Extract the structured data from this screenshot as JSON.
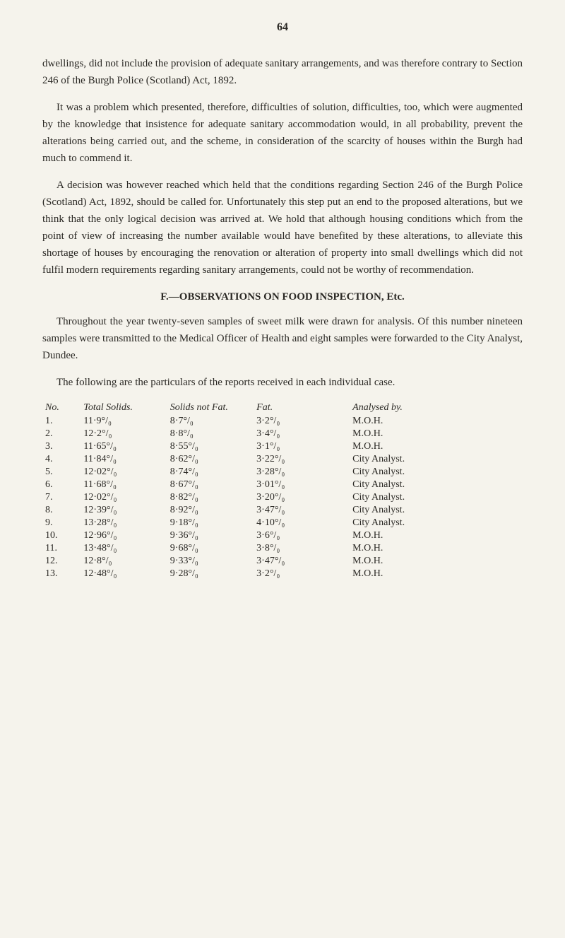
{
  "page_number": "64",
  "paragraphs": [
    "dwellings, did not include the provision of adequate sanitary arrangements, and was therefore contrary to Section 246 of the Burgh Police (Scotland) Act, 1892.",
    "It was a problem which presented, therefore, difficulties of solution, difficulties, too, which were augmented by the knowledge that insistence for adequate sanitary accommodation would, in all probability, prevent the alterations being carried out, and the scheme, in consideration of the scarcity of houses within the Burgh had much to commend it.",
    "A decision was however reached which held that the conditions regarding Section 246 of the Burgh Police (Scotland) Act, 1892, should be called for. Unfortunately this step put an end to the proposed alterations, but we think that the only logical decision was arrived at. We hold that although housing conditions which from the point of view of increasing the number available would have benefited by these alterations, to alleviate this shortage of houses by encouraging the renovation or alteration of property into small dwellings which did not fulfil modern requirements regarding sanitary arrangements, could not be worthy of recommendation."
  ],
  "section_heading": "F.—OBSERVATIONS ON FOOD INSPECTION, Etc.",
  "section_paragraphs": [
    "Throughout the year twenty-seven samples of sweet milk were drawn for analysis. Of this number nineteen samples were transmitted to the Medical Officer of Health and eight samples were forwarded to the City Analyst, Dundee.",
    "The following are the particulars of the reports received in each individual case."
  ],
  "table": {
    "headers": [
      "No.",
      "Total Solids.",
      "Solids not Fat.",
      "Fat.",
      "Analysed by."
    ],
    "rows": [
      [
        "1.",
        "11·9°/₀",
        "8·7°/₀",
        "3·2°/₀",
        "M.O.H."
      ],
      [
        "2.",
        "12·2°/₀",
        "8·8°/₀",
        "3·4°/₀",
        "M.O.H."
      ],
      [
        "3.",
        "11·65°/₀",
        "8·55°/₀",
        "3·1°/₀",
        "M.O.H."
      ],
      [
        "4.",
        "11·84°/₀",
        "8·62°/₀",
        "3·22°/₀",
        "City Analyst."
      ],
      [
        "5.",
        "12·02°/₀",
        "8·74°/₀",
        "3·28°/₀",
        "City Analyst."
      ],
      [
        "6.",
        "11·68°/₀",
        "8·67°/₀",
        "3·01°/₀",
        "City Analyst."
      ],
      [
        "7.",
        "12·02°/₀",
        "8·82°/₀",
        "3·20°/₀",
        "City Analyst."
      ],
      [
        "8.",
        "12·39°/₀",
        "8·92°/₀",
        "3·47°/₀",
        "City Analyst."
      ],
      [
        "9.",
        "13·28°/₀",
        "9·18°/₀",
        "4·10°/₀",
        "City Analyst."
      ],
      [
        "10.",
        "12·96°/₀",
        "9·36°/₀",
        "3·6°/₀",
        "M.O.H."
      ],
      [
        "11.",
        "13·48°/₀",
        "9·68°/₀",
        "3·8°/₀",
        "M.O.H."
      ],
      [
        "12.",
        "12·8°/₀",
        "9·33°/₀",
        "3·47°/₀",
        "M.O.H."
      ],
      [
        "13.",
        "12·48°/₀",
        "9·28°/₀",
        "3·2°/₀",
        "M.O.H."
      ]
    ]
  }
}
